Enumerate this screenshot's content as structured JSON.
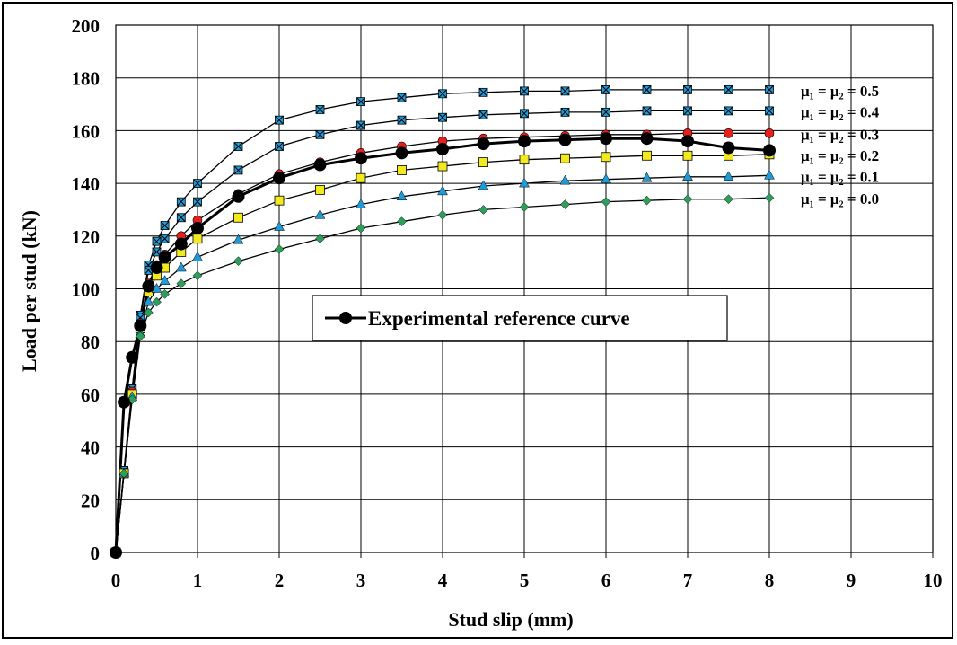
{
  "chart_data": {
    "type": "line",
    "title": "",
    "xlabel": "Stud slip (mm)",
    "ylabel": "Load per stud (kN)",
    "xlim": [
      0,
      10
    ],
    "ylim": [
      0,
      200
    ],
    "xticks": [
      "0",
      "1",
      "2",
      "3",
      "4",
      "5",
      "6",
      "7",
      "8",
      "9",
      "10"
    ],
    "yticks": [
      "0",
      "20",
      "40",
      "60",
      "80",
      "100",
      "120",
      "140",
      "160",
      "180",
      "200"
    ],
    "grid": true,
    "legend": {
      "placement": "center-left",
      "entries": [
        "Experimental reference curve"
      ]
    },
    "x": [
      0,
      0.1,
      0.2,
      0.3,
      0.4,
      0.5,
      0.6,
      0.8,
      1,
      1.5,
      2,
      2.5,
      3,
      3.5,
      4,
      4.5,
      5,
      5.5,
      6,
      6.5,
      7,
      7.5,
      8
    ],
    "series": [
      {
        "name": "μ₁ = μ₂ = 0.5",
        "label": "μ₁ = μ₂ = 0.5",
        "color": "#1f9ad6",
        "marker": "square-x",
        "values": [
          0,
          31,
          62,
          90,
          109,
          118,
          124,
          133,
          140,
          154,
          164,
          168,
          171,
          172.5,
          174,
          174.5,
          175,
          175,
          175.5,
          175.5,
          175.5,
          175.5,
          175.5
        ]
      },
      {
        "name": "μ₁ = μ₂ = 0.4",
        "label": "μ₁ = μ₂ = 0.4",
        "color": "#1f9ad6",
        "marker": "square-x",
        "values": [
          0,
          31,
          62,
          89,
          107,
          114,
          119,
          127,
          133,
          145,
          154,
          158.5,
          162,
          164,
          165,
          166,
          166.5,
          167,
          167,
          167.5,
          167.5,
          167.5,
          167.5
        ]
      },
      {
        "name": "μ₁ = μ₂ = 0.3",
        "label": "μ₁ = μ₂ = 0.3",
        "color": "#e8201c",
        "marker": "circle",
        "values": [
          0,
          30,
          61,
          87,
          102,
          109,
          113,
          120,
          126,
          136,
          143.5,
          148,
          151.5,
          154,
          156,
          157,
          157.5,
          158,
          158.5,
          158.5,
          159,
          159,
          159
        ]
      },
      {
        "name": "μ₁ = μ₂ = 0.2",
        "label": "μ₁ = μ₂ = 0.2",
        "color": "#f2ea1f",
        "marker": "square",
        "values": [
          0,
          30,
          60,
          85,
          99,
          105,
          108,
          114,
          119,
          127,
          133.5,
          137.5,
          142,
          145,
          146.5,
          148,
          149,
          149.5,
          150,
          150.5,
          150.5,
          150.5,
          151
        ]
      },
      {
        "name": "μ₁ = μ₂ = 0.1",
        "label": "μ₁ = μ₂ = 0.1",
        "color": "#1f9ad6",
        "marker": "triangle",
        "values": [
          0,
          30,
          59,
          83,
          95,
          100,
          103,
          108,
          112,
          118.5,
          123.5,
          128,
          132,
          135,
          137,
          139,
          140,
          141,
          141.5,
          142,
          142.5,
          142.5,
          143
        ]
      },
      {
        "name": "μ₁ = μ₂ = 0.0",
        "label": "μ₁ = μ₂ = 0.0",
        "color": "#2ca05a",
        "marker": "diamond",
        "values": [
          0,
          30,
          58,
          82,
          91,
          95,
          98,
          102,
          105,
          110.5,
          115,
          119,
          123,
          125.5,
          128,
          130,
          131,
          132,
          133,
          133.5,
          134,
          134,
          134.5
        ]
      },
      {
        "name": "Experimental reference curve",
        "label": "",
        "color": "#000000",
        "marker": "big-circle",
        "x": [
          0,
          0.1,
          0.2,
          0.3,
          0.4,
          0.5,
          0.6,
          0.8,
          1,
          1.5,
          2,
          2.5,
          3,
          3.5,
          4,
          4.5,
          5,
          5.5,
          6,
          6.5,
          7,
          7.5,
          8
        ],
        "values": [
          0,
          57,
          74,
          86,
          101,
          108,
          112,
          117,
          123,
          135,
          142,
          147,
          149.5,
          151.5,
          153,
          155,
          156,
          156.5,
          157,
          157,
          156,
          153.5,
          152.5
        ]
      }
    ]
  }
}
